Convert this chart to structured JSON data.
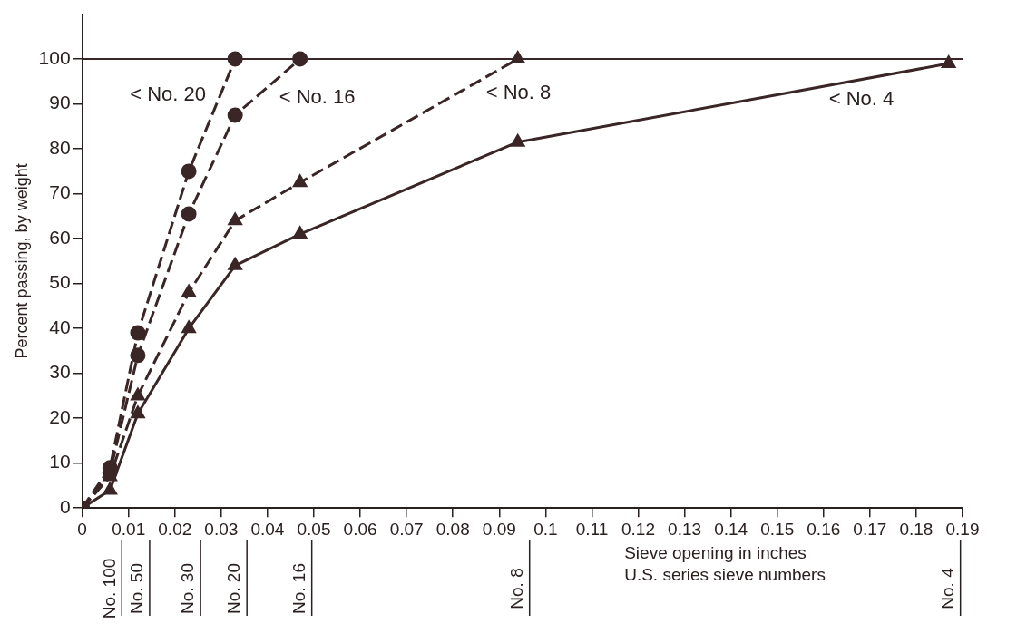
{
  "chart_data": {
    "type": "line",
    "ylabel": "Percent passing, by weight",
    "xlabel": "Sieve opening in inches",
    "xlim": [
      0,
      0.19
    ],
    "xticks": [
      0,
      0.01,
      0.02,
      0.03,
      0.04,
      0.05,
      0.06,
      0.07,
      0.08,
      0.09,
      0.1,
      0.11,
      0.12,
      0.13,
      0.14,
      0.15,
      0.16,
      0.17,
      0.18,
      0.19
    ],
    "ylim": [
      0,
      110
    ],
    "yticks": [
      0,
      10,
      20,
      30,
      40,
      50,
      60,
      70,
      80,
      90,
      100
    ],
    "grid": false,
    "legend": false,
    "series": [
      {
        "color": "#3a2626",
        "marker": "circle",
        "line_style": "dashed",
        "x": [
          0,
          0.006,
          0.012,
          0.023,
          0.033
        ],
        "values": [
          0,
          9,
          39,
          75,
          100
        ]
      },
      {
        "color": "#3a2626",
        "marker": "circle",
        "line_style": "dashed",
        "x": [
          0,
          0.006,
          0.012,
          0.023,
          0.033,
          0.047
        ],
        "values": [
          0,
          8,
          34,
          65.5,
          87.5,
          100
        ]
      },
      {
        "color": "#3a2626",
        "marker": "triangle",
        "line_style": "dashed",
        "x": [
          0,
          0.006,
          0.012,
          0.023,
          0.033,
          0.047,
          0.094
        ],
        "values": [
          0,
          7,
          25,
          48,
          64,
          72.5,
          100
        ]
      },
      {
        "color": "#3a2626",
        "marker": "triangle",
        "line_style": "solid",
        "x": [
          0,
          0.006,
          0.012,
          0.023,
          0.033,
          0.047,
          0.094,
          0.187
        ],
        "values": [
          0,
          4,
          21,
          40,
          54,
          61,
          81.5,
          99
        ]
      }
    ],
    "ref_lines": [
      {
        "axis": "y",
        "value": 100,
        "color": "#3a2626"
      }
    ],
    "annotations": [
      "< No. 20",
      "< No. 16",
      "< No. 8",
      "< No. 4",
      "No. 100",
      "No. 50",
      "No. 30",
      "No. 20",
      "No. 16",
      "No. 8",
      "No. 4",
      "U.S. series sieve numbers"
    ]
  }
}
